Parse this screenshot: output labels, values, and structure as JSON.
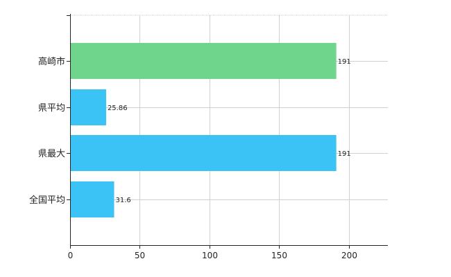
{
  "chart_data": {
    "type": "bar",
    "orientation": "horizontal",
    "categories": [
      "高崎市",
      "県平均",
      "県最大",
      "全国平均"
    ],
    "values": [
      191,
      25.86,
      191,
      31.6
    ],
    "value_labels": [
      "191",
      "25.86",
      "191",
      "31.6"
    ],
    "bar_colors": [
      "#6fd48c",
      "#3cc3f5",
      "#3cc3f5",
      "#3cc3f5"
    ],
    "xlim": [
      0,
      228
    ],
    "xticks": [
      0,
      50,
      100,
      150,
      200
    ],
    "xtick_labels": [
      "0",
      "50",
      "100",
      "150",
      "200"
    ],
    "grid": true,
    "title": "",
    "xlabel": "",
    "ylabel": ""
  }
}
